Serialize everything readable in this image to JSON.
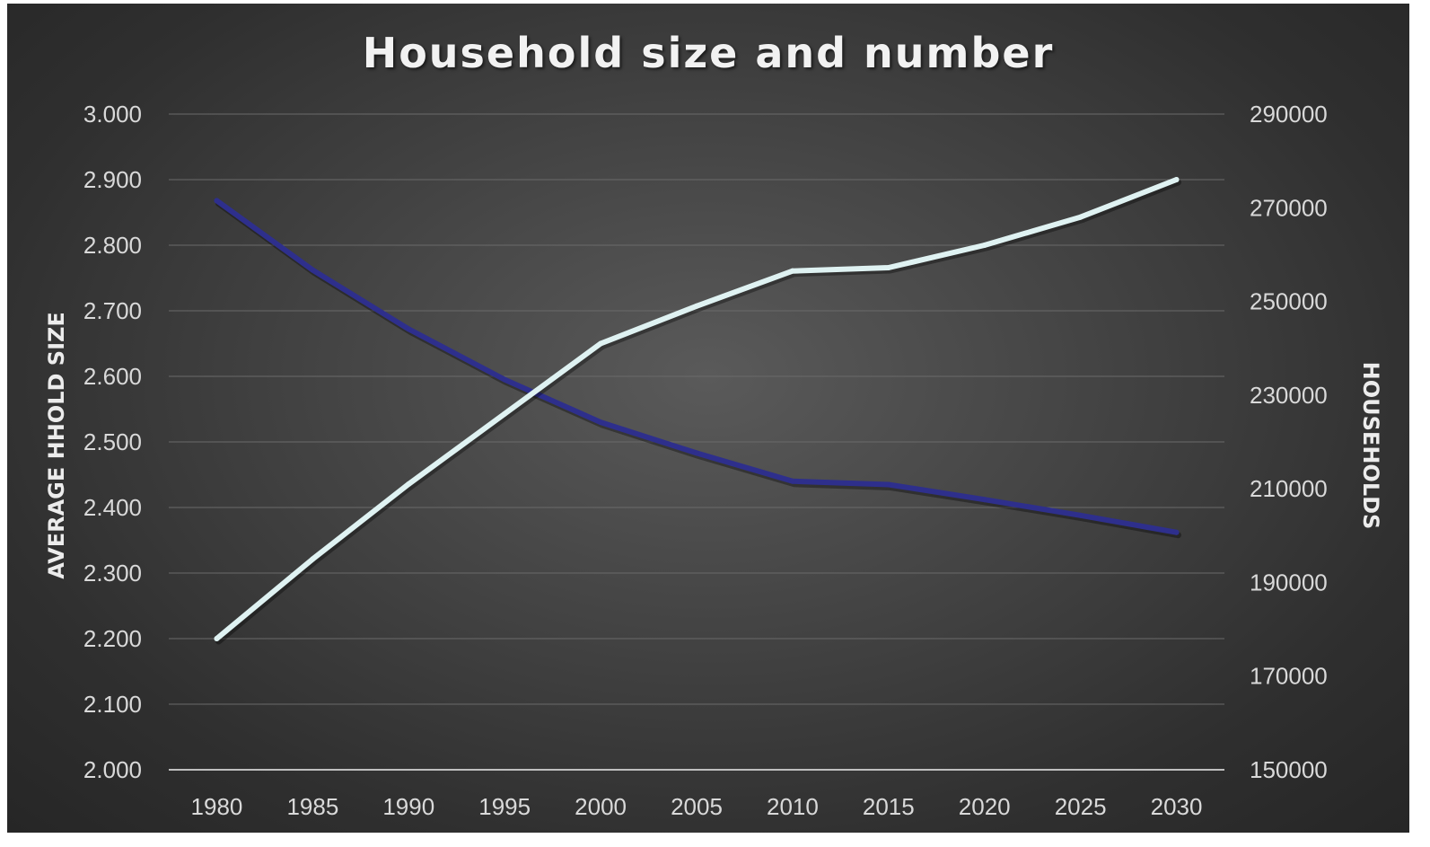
{
  "chart_data": {
    "type": "line",
    "title": "Household size and number",
    "x": [
      "1980",
      "1985",
      "1990",
      "1995",
      "2000",
      "2005",
      "2010",
      "2015",
      "2020",
      "2025",
      "2030"
    ],
    "y_left": {
      "label": "AVERAGE HHOLD SIZE",
      "ylim": [
        2.0,
        3.0
      ],
      "ticks": [
        "2.000",
        "2.100",
        "2.200",
        "2.300",
        "2.400",
        "2.500",
        "2.600",
        "2.700",
        "2.800",
        "2.900",
        "3.000"
      ]
    },
    "y_right": {
      "label": "HOUSEHOLDS",
      "ylim": [
        150000,
        290000
      ],
      "ticks": [
        "150000",
        "170000",
        "190000",
        "210000",
        "230000",
        "250000",
        "270000",
        "290000"
      ]
    },
    "series": [
      {
        "axis": "left",
        "color": "#2e2f8c",
        "values": [
          2.868,
          2.762,
          2.672,
          2.595,
          2.53,
          2.483,
          2.44,
          2.435,
          2.412,
          2.388,
          2.362
        ]
      },
      {
        "axis": "right",
        "color": "#dff2f2",
        "values": [
          178000,
          195000,
          211000,
          226000,
          241000,
          249000,
          256500,
          257200,
          262000,
          268000,
          276000
        ]
      }
    ],
    "grid": true,
    "legend": "none"
  }
}
